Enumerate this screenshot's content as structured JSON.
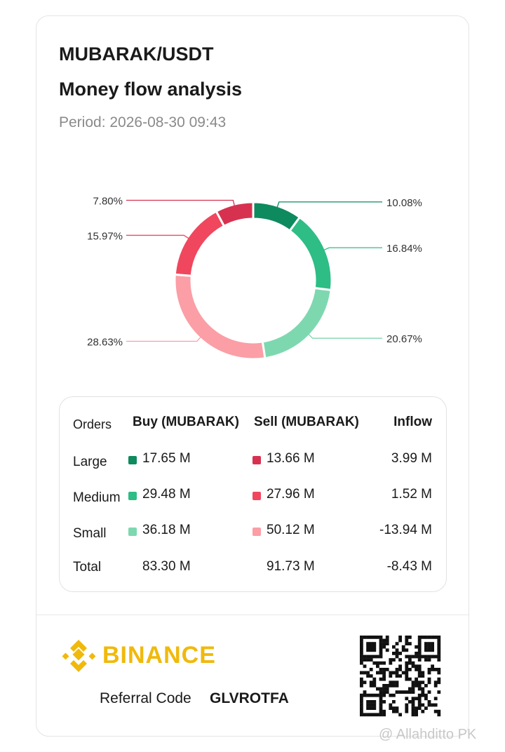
{
  "header": {
    "pair": "MUBARAK/USDT",
    "title": "Money flow analysis",
    "period": "Period: 2026-08-30 09:43"
  },
  "chart_data": {
    "type": "pie",
    "donut": true,
    "values": [
      10.08,
      16.84,
      20.67,
      28.63,
      15.97,
      7.8
    ],
    "value_labels": [
      "10.08%",
      "16.84%",
      "20.67%",
      "28.63%",
      "15.97%",
      "7.80%"
    ],
    "colors": [
      "#0e8a5f",
      "#2ebd85",
      "#7dd8b0",
      "#fb9ea6",
      "#f0475e",
      "#d6324f"
    ]
  },
  "table": {
    "header": [
      "Orders",
      "Buy (MUBARAK)",
      "Sell (MUBARAK)",
      "Inflow"
    ],
    "rows": [
      [
        "Large",
        "17.65 M",
        "13.66 M",
        "3.99 M"
      ],
      [
        "Medium",
        "29.48 M",
        "27.96 M",
        "1.52 M"
      ],
      [
        "Small",
        "36.18 M",
        "50.12 M",
        "-13.94 M"
      ],
      [
        "Total",
        "83.30 M",
        "91.73 M",
        "-8.43 M"
      ]
    ]
  },
  "footer": {
    "brand": "BINANCE",
    "referral_label": "Referral Code",
    "referral_code": "GLVROTFA",
    "watermark": "@ Allahditto PK"
  }
}
